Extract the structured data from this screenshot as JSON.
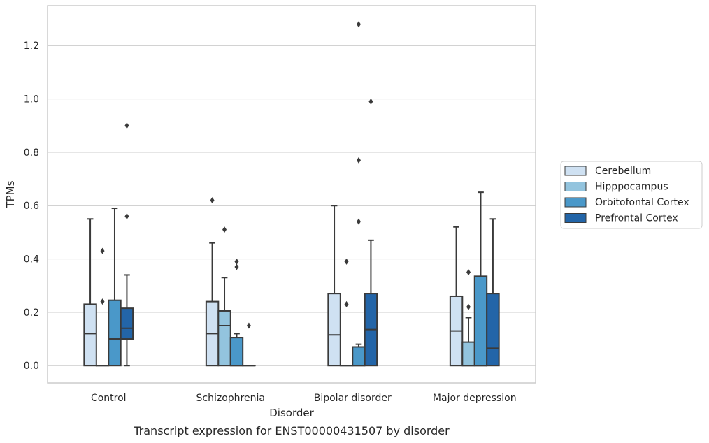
{
  "chart_data": {
    "type": "box",
    "xlabel": "Disorder",
    "ylabel": "TPMs",
    "caption": "Transcript expression for ENST00000431507 by disorder",
    "ylim": [
      -0.065,
      1.35
    ],
    "yticks": [
      "0.0",
      "0.2",
      "0.4",
      "0.6",
      "0.8",
      "1.0",
      "1.2"
    ],
    "grid": "horizontal",
    "legend_position": "right",
    "categories": [
      "Control",
      "Schizophrenia",
      "Bipolar disorder",
      "Major depression"
    ],
    "series": [
      {
        "name": "Cerebellum",
        "color": "#cfe1f2",
        "boxes": [
          {
            "min": 0.0,
            "q1": 0.0,
            "median": 0.12,
            "q3": 0.23,
            "max": 0.55,
            "outliers": []
          },
          {
            "min": 0.0,
            "q1": 0.0,
            "median": 0.12,
            "q3": 0.24,
            "max": 0.46,
            "outliers": [
              0.62
            ]
          },
          {
            "min": 0.0,
            "q1": 0.0,
            "median": 0.115,
            "q3": 0.27,
            "max": 0.6,
            "outliers": []
          },
          {
            "min": 0.0,
            "q1": 0.0,
            "median": 0.13,
            "q3": 0.26,
            "max": 0.52,
            "outliers": []
          }
        ]
      },
      {
        "name": "Hipppocampus",
        "color": "#93c4de",
        "boxes": [
          {
            "min": 0.0,
            "q1": 0.0,
            "median": 0.0,
            "q3": 0.0,
            "max": 0.0,
            "outliers": [
              0.24,
              0.43
            ]
          },
          {
            "min": 0.0,
            "q1": 0.0,
            "median": 0.15,
            "q3": 0.205,
            "max": 0.33,
            "outliers": [
              0.51
            ]
          },
          {
            "min": 0.0,
            "q1": 0.0,
            "median": 0.0,
            "q3": 0.0,
            "max": 0.0,
            "outliers": [
              0.23,
              0.39
            ]
          },
          {
            "min": 0.0,
            "q1": 0.0,
            "median": 0.0,
            "q3": 0.088,
            "max": 0.18,
            "outliers": [
              0.22,
              0.35
            ]
          }
        ]
      },
      {
        "name": "Orbitofontal Cortex",
        "color": "#4a98c9",
        "boxes": [
          {
            "min": 0.0,
            "q1": 0.0,
            "median": 0.1,
            "q3": 0.245,
            "max": 0.59,
            "outliers": []
          },
          {
            "min": 0.0,
            "q1": 0.0,
            "median": 0.0,
            "q3": 0.105,
            "max": 0.12,
            "outliers": [
              0.37,
              0.39
            ]
          },
          {
            "min": 0.0,
            "q1": 0.0,
            "median": 0.0,
            "q3": 0.07,
            "max": 0.08,
            "outliers": [
              0.54,
              0.77,
              1.28
            ]
          },
          {
            "min": 0.0,
            "q1": 0.0,
            "median": 0.0,
            "q3": 0.335,
            "max": 0.65,
            "outliers": []
          }
        ]
      },
      {
        "name": "Prefrontal Cortex",
        "color": "#2365a8",
        "boxes": [
          {
            "min": 0.0,
            "q1": 0.1,
            "median": 0.14,
            "q3": 0.215,
            "max": 0.34,
            "outliers": [
              0.56,
              0.9
            ]
          },
          {
            "min": 0.0,
            "q1": 0.0,
            "median": 0.0,
            "q3": 0.0,
            "max": 0.0,
            "outliers": [
              0.15
            ]
          },
          {
            "min": 0.0,
            "q1": 0.0,
            "median": 0.135,
            "q3": 0.27,
            "max": 0.47,
            "outliers": [
              0.99
            ]
          },
          {
            "min": 0.0,
            "q1": 0.0,
            "median": 0.065,
            "q3": 0.27,
            "max": 0.55,
            "outliers": []
          }
        ]
      }
    ]
  }
}
